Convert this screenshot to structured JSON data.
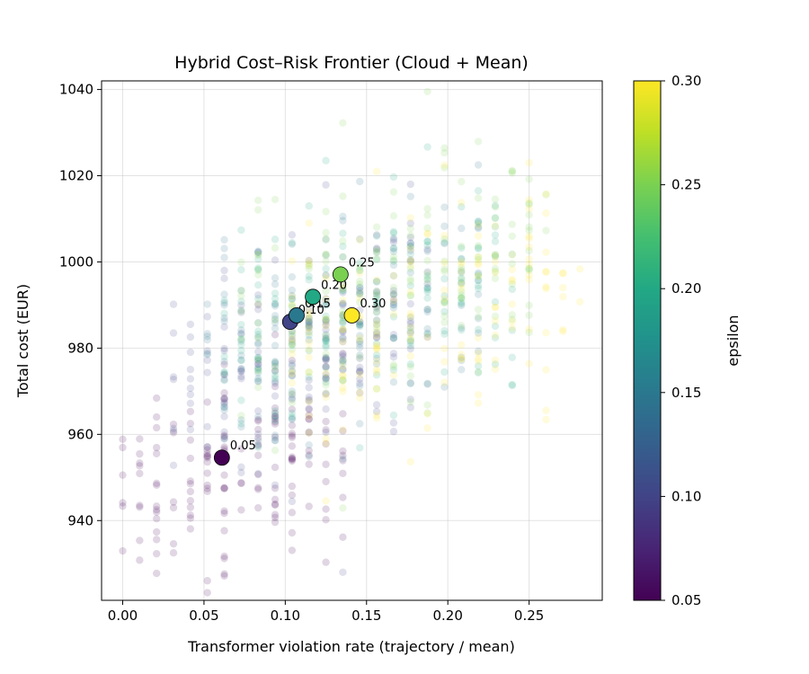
{
  "chart_data": {
    "type": "scatter",
    "title": "Hybrid Cost–Risk Frontier (Cloud + Mean)",
    "xlabel": "Transformer violation rate (trajectory / mean)",
    "ylabel": "Total cost (EUR)",
    "xlim": [
      -0.013,
      0.295
    ],
    "ylim": [
      921.5,
      1042
    ],
    "xticks": [
      "0.00",
      "0.05",
      "0.10",
      "0.15",
      "0.20",
      "0.25"
    ],
    "yticks": [
      "940",
      "960",
      "980",
      "1000",
      "1020",
      "1040"
    ],
    "grid": true,
    "colormap": "viridis",
    "colorbar": {
      "label": "epsilon",
      "range": [
        0.05,
        0.3
      ],
      "ticks": [
        "0.05",
        "0.10",
        "0.15",
        "0.20",
        "0.25",
        "0.30"
      ]
    },
    "cloud_description_points": [
      {
        "eps": 0.05,
        "x_range": [
          0.0,
          0.14
        ],
        "y_center": 953,
        "y_spread": 12
      },
      {
        "eps": 0.1,
        "x_range": [
          0.03,
          0.19
        ],
        "y_center": 980,
        "y_spread": 13
      },
      {
        "eps": 0.15,
        "x_range": [
          0.05,
          0.22
        ],
        "y_center": 987,
        "y_spread": 13
      },
      {
        "eps": 0.2,
        "x_range": [
          0.06,
          0.24
        ],
        "y_center": 990,
        "y_spread": 13
      },
      {
        "eps": 0.25,
        "x_range": [
          0.07,
          0.26
        ],
        "y_center": 996,
        "y_spread": 13
      },
      {
        "eps": 0.3,
        "x_range": [
          0.1,
          0.28
        ],
        "y_center": 987,
        "y_spread": 12
      }
    ],
    "series": [
      {
        "kind": "mean",
        "points": [
          {
            "label": "0.05",
            "eps": 0.05,
            "x": 0.061,
            "y": 954.6
          },
          {
            "label": "0.10",
            "eps": 0.1,
            "x": 0.103,
            "y": 986.1
          },
          {
            "label": "0.15",
            "eps": 0.15,
            "x": 0.107,
            "y": 987.6
          },
          {
            "label": "0.20",
            "eps": 0.2,
            "x": 0.117,
            "y": 991.9
          },
          {
            "label": "0.25",
            "eps": 0.25,
            "x": 0.134,
            "y": 997.1
          },
          {
            "label": "0.30",
            "eps": 0.3,
            "x": 0.141,
            "y": 987.6
          }
        ]
      }
    ]
  }
}
